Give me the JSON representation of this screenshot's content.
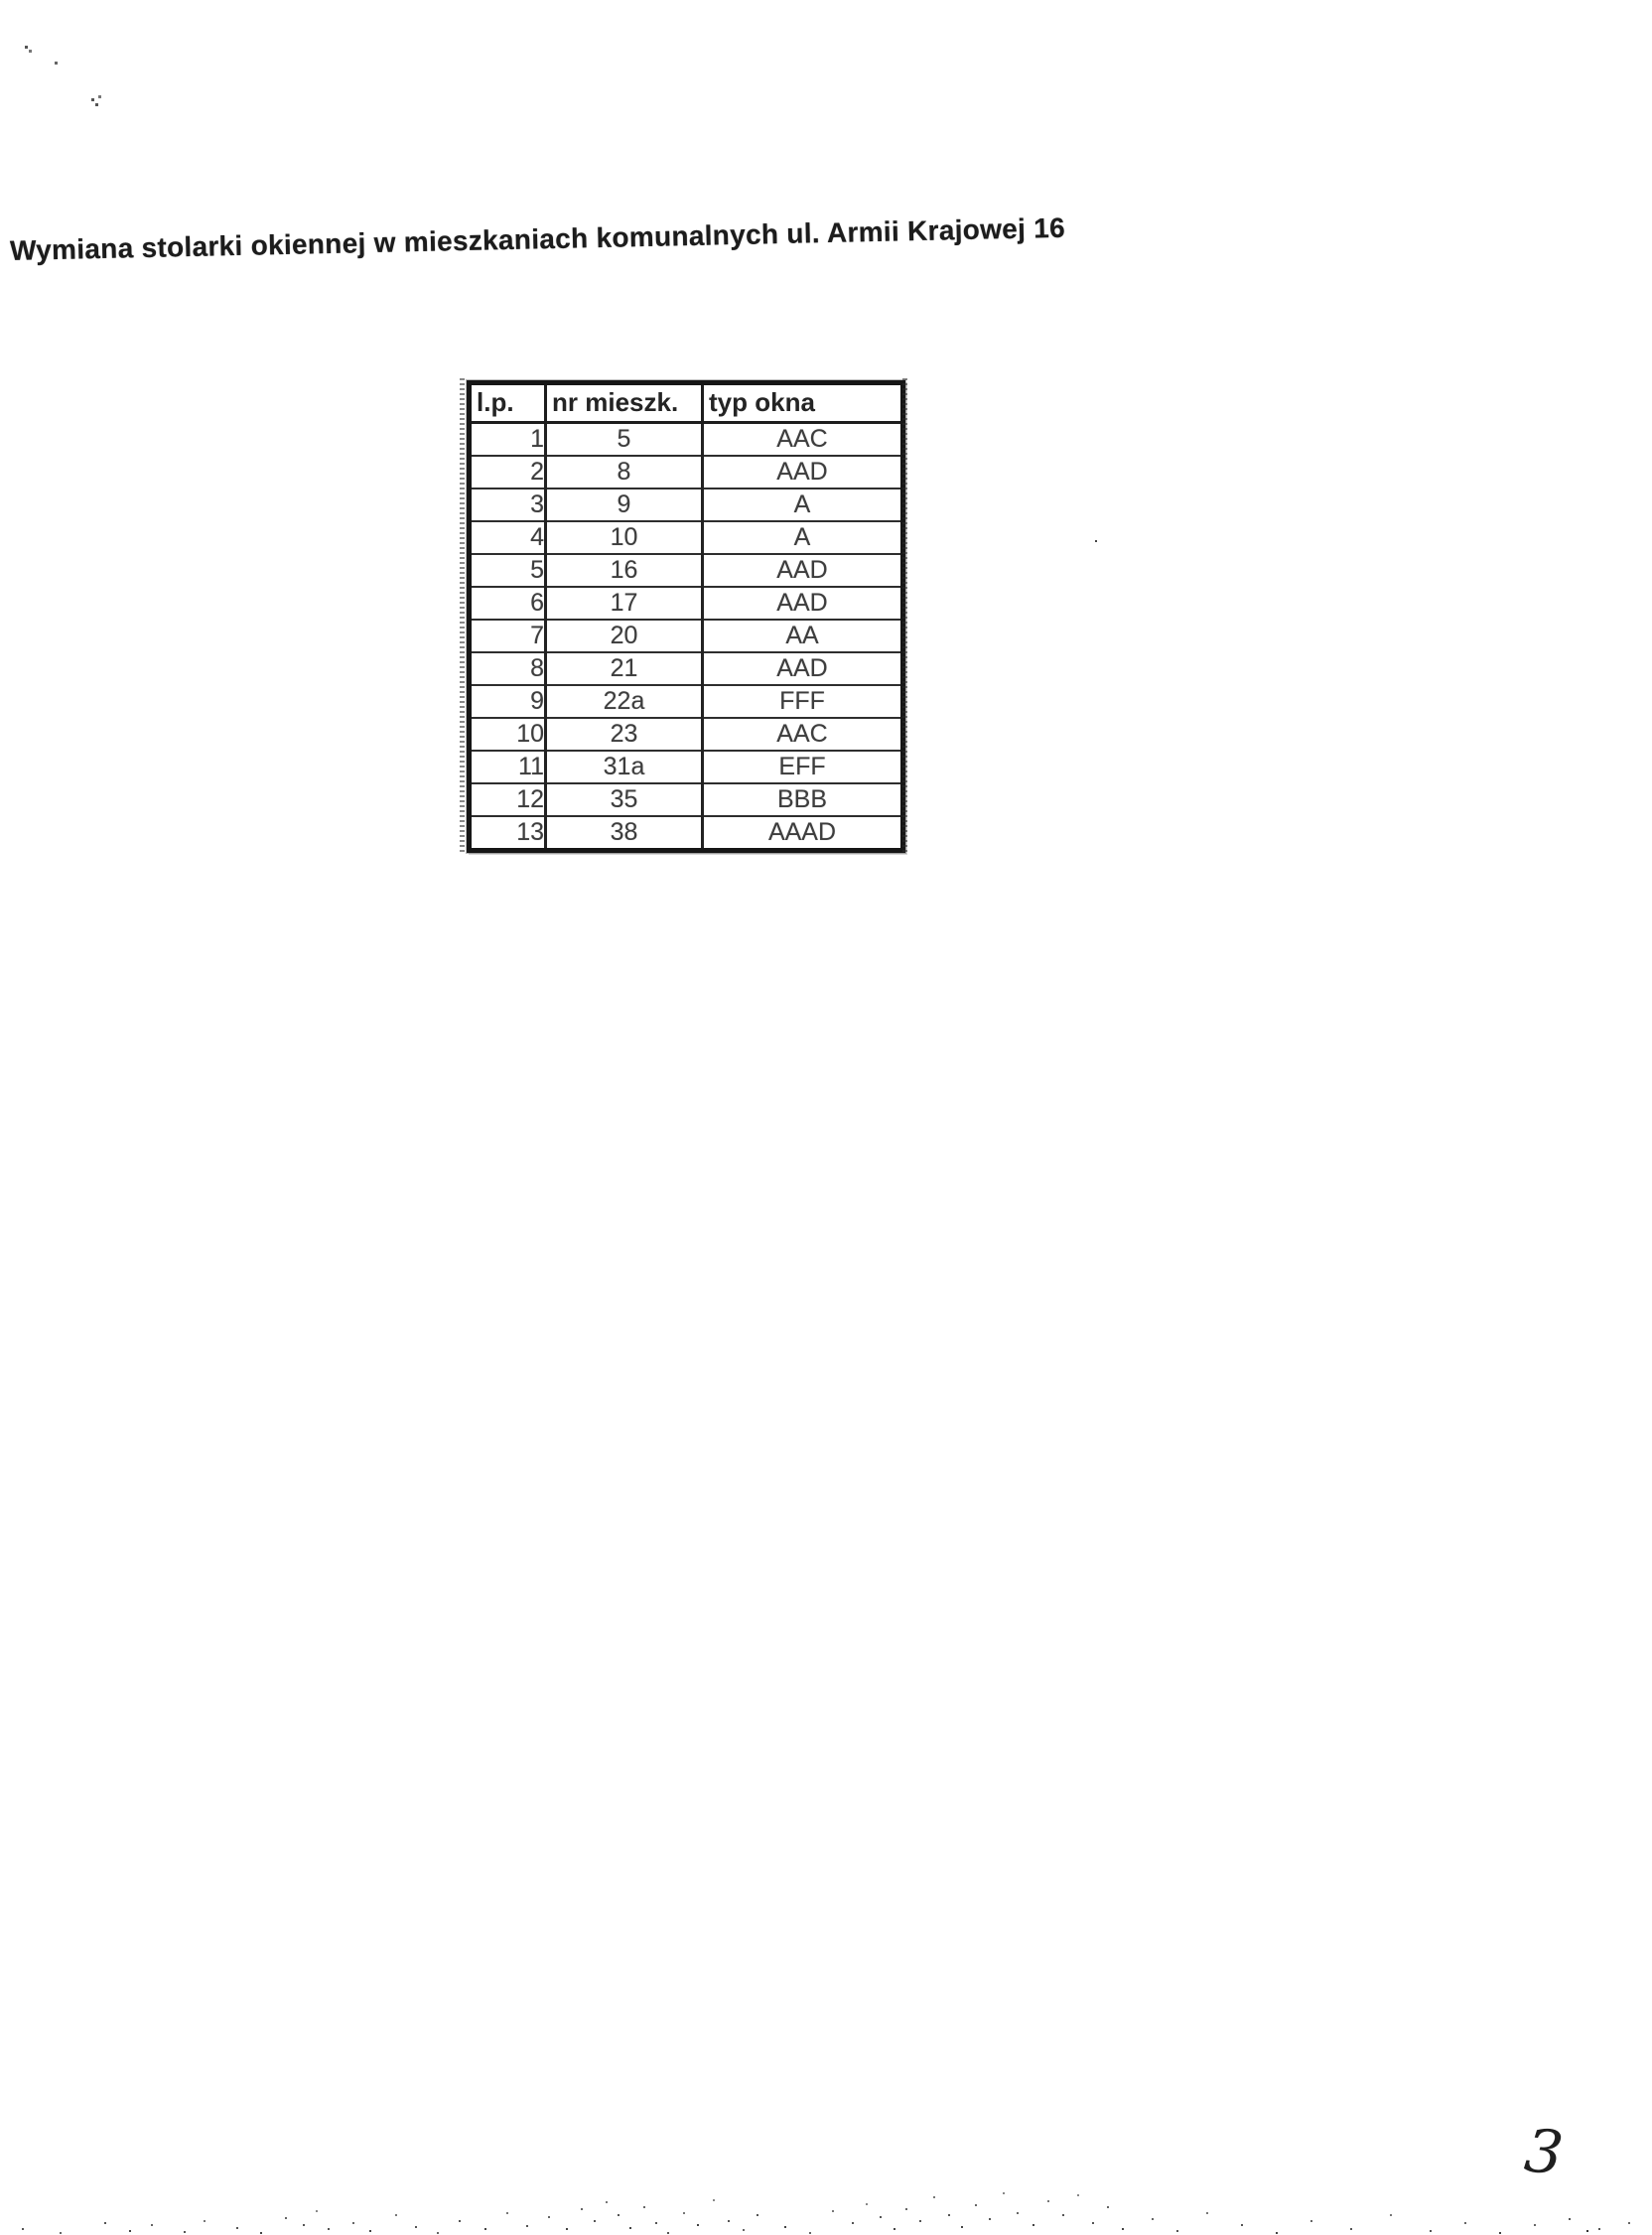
{
  "page": {
    "title": "Wymiana stolarki okiennej w mieszkaniach komunalnych ul. Armii Krajowej 16",
    "page_number": "3"
  },
  "table": {
    "headers": {
      "lp": "l.p.",
      "nr_mieszk": "nr mieszk.",
      "typ_okna": "typ okna"
    },
    "rows": [
      {
        "lp": "1",
        "nr": "5",
        "typ": "AAC"
      },
      {
        "lp": "2",
        "nr": "8",
        "typ": "AAD"
      },
      {
        "lp": "3",
        "nr": "9",
        "typ": "A"
      },
      {
        "lp": "4",
        "nr": "10",
        "typ": "A"
      },
      {
        "lp": "5",
        "nr": "16",
        "typ": "AAD"
      },
      {
        "lp": "6",
        "nr": "17",
        "typ": "AAD"
      },
      {
        "lp": "7",
        "nr": "20",
        "typ": "AA"
      },
      {
        "lp": "8",
        "nr": "21",
        "typ": "AAD"
      },
      {
        "lp": "9",
        "nr": "22a",
        "typ": "FFF"
      },
      {
        "lp": "10",
        "nr": "23",
        "typ": "AAC"
      },
      {
        "lp": "11",
        "nr": "31a",
        "typ": "EFF"
      },
      {
        "lp": "12",
        "nr": "35",
        "typ": "BBB"
      },
      {
        "lp": "13",
        "nr": "38",
        "typ": "AAAD"
      }
    ]
  }
}
